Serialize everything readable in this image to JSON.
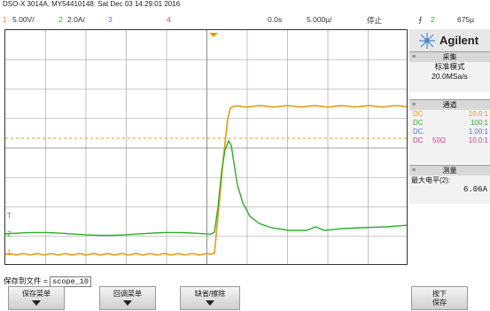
{
  "header": {
    "device_info": "DSO-X 3014A, MY54410148: Sat Dec 03 14:29:01 2016"
  },
  "channel_bar": {
    "ch1_num": "1",
    "ch1_scale": "5.00V/",
    "ch2_num": "2",
    "ch2_scale": "2.0A/",
    "ch3_num": "3",
    "ch4_num": "4",
    "time_offset": "0.0s",
    "time_scale": "5.000µ/",
    "run_state": "停止",
    "trigger_icon": "trigger-edge-icon",
    "trigger_source": "2",
    "trigger_level": "675µ"
  },
  "plot": {
    "ch1_marker": "1",
    "ch2_marker": "2",
    "ch2_ground_marker": "≤",
    "trigger_level_marker": "T"
  },
  "brand": {
    "logo_icon": "agilent-spark-icon",
    "name": "Agilent"
  },
  "acquire": {
    "title": "采集",
    "mode": "标准模式",
    "rate": "20.0MSa/s"
  },
  "channels": {
    "title": "通道",
    "rows": [
      {
        "coupling": "DC",
        "imp": "",
        "value": "10.0:1"
      },
      {
        "coupling": "DC",
        "imp": "",
        "value": "100:1"
      },
      {
        "coupling": "DC",
        "imp": "",
        "value": "1.00:1"
      },
      {
        "coupling": "DC",
        "imp": "50Ω",
        "value": "10.0:1"
      }
    ]
  },
  "measure": {
    "title": "测量",
    "label": "最大电平(2):",
    "value": "6.06A"
  },
  "save": {
    "label": "保存到文件 =",
    "filename": "scope_10"
  },
  "softkeys": {
    "save_menu": "保存菜单",
    "recall_menu": "回调菜单",
    "default_erase": "缺省/擦除",
    "press": "按下",
    "save": "保存"
  },
  "colors": {
    "ch1": "#e89a17",
    "ch2": "#2fae2b",
    "ch3": "#5a6fd8",
    "ch4": "#d23a9e",
    "grid": "#222222"
  }
}
